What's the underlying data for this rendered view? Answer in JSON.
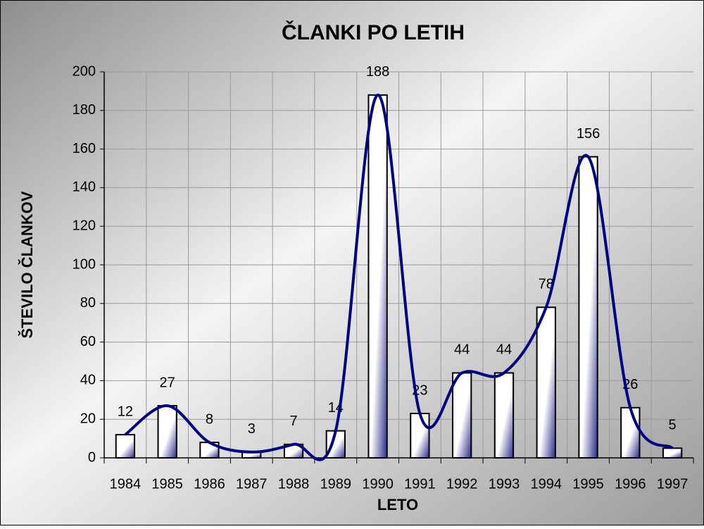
{
  "chart_data": {
    "type": "bar",
    "title": "ČLANKI PO LETIH",
    "x_label": "LETO",
    "y_label": "ŠTEVILO ČLANKOV",
    "categories": [
      "1984",
      "1985",
      "1986",
      "1987",
      "1988",
      "1989",
      "1990",
      "1991",
      "1992",
      "1993",
      "1994",
      "1995",
      "1996",
      "1997"
    ],
    "values": [
      12,
      27,
      8,
      3,
      7,
      14,
      188,
      23,
      44,
      44,
      78,
      156,
      26,
      5
    ],
    "color": "#2a2a8c",
    "line_color": "#000080",
    "smooth_line": true,
    "ylim": [
      0,
      200
    ],
    "yticks": [
      0,
      20,
      40,
      60,
      80,
      100,
      120,
      140,
      160,
      180,
      200
    ],
    "grid": true
  }
}
